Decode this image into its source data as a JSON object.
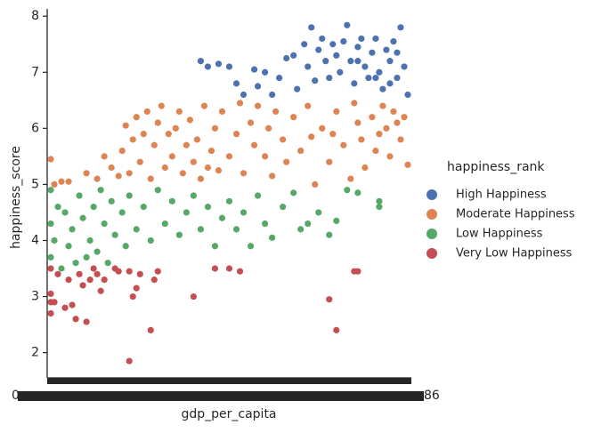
{
  "chart_data": {
    "type": "strip",
    "x_label": "gdp_per_capita",
    "y_label": "happiness_score",
    "x_tick_fragments": [
      "0",
      "86"
    ],
    "legend_title": "happiness_rank",
    "legend": "right",
    "xlim": [
      -1,
      101
    ],
    "ylim": [
      1.55,
      8.13
    ],
    "yticks": [
      2,
      3,
      4,
      5,
      6,
      7,
      8
    ],
    "series": [
      {
        "name": "High Happiness",
        "color": "#4c72b0",
        "x": [
          42,
          44,
          47,
          50,
          52,
          54,
          57,
          58,
          60,
          62,
          64,
          66,
          68,
          69,
          71,
          72,
          73,
          74,
          75,
          76,
          77,
          78,
          79,
          80,
          81,
          82,
          83,
          84,
          85,
          86,
          87,
          88,
          89,
          90,
          91,
          92,
          93,
          94,
          95,
          96,
          97,
          98,
          99,
          100,
          97,
          95,
          91,
          86
        ],
        "values": [
          7.2,
          7.1,
          7.15,
          7.1,
          6.8,
          6.6,
          7.05,
          6.75,
          7.0,
          6.6,
          6.9,
          7.25,
          7.3,
          6.7,
          7.5,
          7.1,
          7.8,
          6.85,
          7.4,
          7.6,
          7.2,
          6.9,
          7.5,
          7.3,
          7.0,
          7.55,
          7.84,
          7.2,
          6.8,
          7.45,
          7.6,
          7.1,
          6.9,
          7.35,
          7.6,
          7.0,
          6.7,
          7.4,
          7.2,
          7.55,
          6.9,
          7.8,
          7.1,
          6.6,
          7.35,
          6.8,
          6.9,
          7.2
        ]
      },
      {
        "name": "Moderate Happiness",
        "color": "#dd8452",
        "x": [
          0,
          1,
          3,
          5,
          10,
          13,
          15,
          17,
          19,
          20,
          21,
          22,
          23,
          24,
          25,
          26,
          27,
          28,
          29,
          30,
          31,
          32,
          33,
          34,
          35,
          36,
          37,
          38,
          39,
          40,
          41,
          42,
          43,
          44,
          45,
          46,
          47,
          48,
          50,
          52,
          53,
          54,
          56,
          57,
          58,
          60,
          61,
          62,
          63,
          65,
          66,
          68,
          70,
          72,
          74,
          76,
          78,
          80,
          82,
          84,
          85,
          87,
          88,
          90,
          91,
          93,
          94,
          95,
          96,
          97,
          98,
          100,
          99,
          92,
          86,
          79,
          73
        ],
        "values": [
          5.45,
          5.0,
          5.05,
          5.05,
          5.2,
          5.1,
          5.5,
          5.3,
          5.15,
          5.6,
          6.05,
          5.2,
          5.8,
          6.2,
          5.4,
          5.9,
          6.3,
          5.1,
          5.7,
          6.1,
          6.4,
          5.3,
          5.9,
          5.5,
          6.0,
          6.3,
          5.2,
          5.7,
          6.15,
          5.4,
          5.8,
          5.1,
          6.4,
          5.3,
          5.6,
          6.0,
          5.25,
          6.3,
          5.5,
          5.9,
          6.45,
          5.2,
          6.1,
          5.7,
          6.4,
          5.5,
          6.0,
          5.15,
          6.3,
          5.8,
          5.4,
          6.2,
          5.6,
          6.4,
          5.0,
          6.0,
          5.4,
          6.3,
          5.7,
          5.1,
          6.45,
          5.8,
          5.3,
          6.2,
          5.6,
          6.4,
          6.0,
          5.5,
          6.3,
          6.1,
          5.8,
          5.35,
          6.2,
          5.9,
          6.1,
          5.9,
          5.85
        ]
      },
      {
        "name": "Low Happiness",
        "color": "#55a868",
        "x": [
          0,
          0,
          0,
          1,
          2,
          3,
          4,
          5,
          6,
          7,
          8,
          9,
          10,
          11,
          12,
          13,
          14,
          15,
          16,
          17,
          18,
          20,
          21,
          22,
          24,
          26,
          28,
          30,
          32,
          34,
          36,
          38,
          40,
          42,
          44,
          46,
          48,
          50,
          52,
          54,
          56,
          58,
          60,
          62,
          65,
          68,
          70,
          72,
          75,
          78,
          80,
          83,
          86,
          92,
          92
        ],
        "values": [
          4.9,
          4.3,
          3.7,
          4.0,
          4.6,
          3.5,
          4.5,
          3.9,
          4.2,
          3.6,
          4.8,
          4.4,
          3.7,
          4.0,
          4.6,
          3.8,
          4.9,
          4.3,
          3.6,
          4.7,
          4.1,
          4.5,
          3.9,
          4.8,
          4.2,
          4.6,
          4.0,
          4.9,
          4.3,
          4.7,
          4.1,
          4.5,
          4.8,
          4.2,
          4.6,
          3.9,
          4.4,
          4.7,
          4.2,
          4.5,
          3.9,
          4.8,
          4.3,
          4.05,
          4.6,
          4.85,
          4.2,
          4.3,
          4.5,
          4.1,
          4.35,
          4.9,
          4.85,
          4.7,
          4.6
        ]
      },
      {
        "name": "Very Low Happiness",
        "color": "#c44e52",
        "x": [
          0,
          0,
          0,
          0,
          1,
          2,
          4,
          5,
          6,
          7,
          8,
          9,
          10,
          11,
          12,
          13,
          14,
          15,
          18,
          22,
          23,
          24,
          25,
          22,
          28,
          30,
          40,
          46,
          50,
          53,
          78,
          80,
          85,
          86,
          29,
          19
        ],
        "values": [
          3.05,
          2.9,
          2.7,
          3.5,
          2.9,
          3.4,
          2.8,
          3.3,
          2.85,
          2.6,
          3.4,
          3.2,
          2.55,
          3.3,
          3.5,
          3.4,
          3.1,
          3.3,
          3.5,
          3.45,
          3.0,
          3.15,
          3.4,
          1.85,
          2.4,
          3.45,
          3.0,
          3.5,
          3.5,
          3.45,
          2.95,
          2.4,
          3.45,
          3.45,
          3.3,
          3.45
        ]
      }
    ]
  }
}
